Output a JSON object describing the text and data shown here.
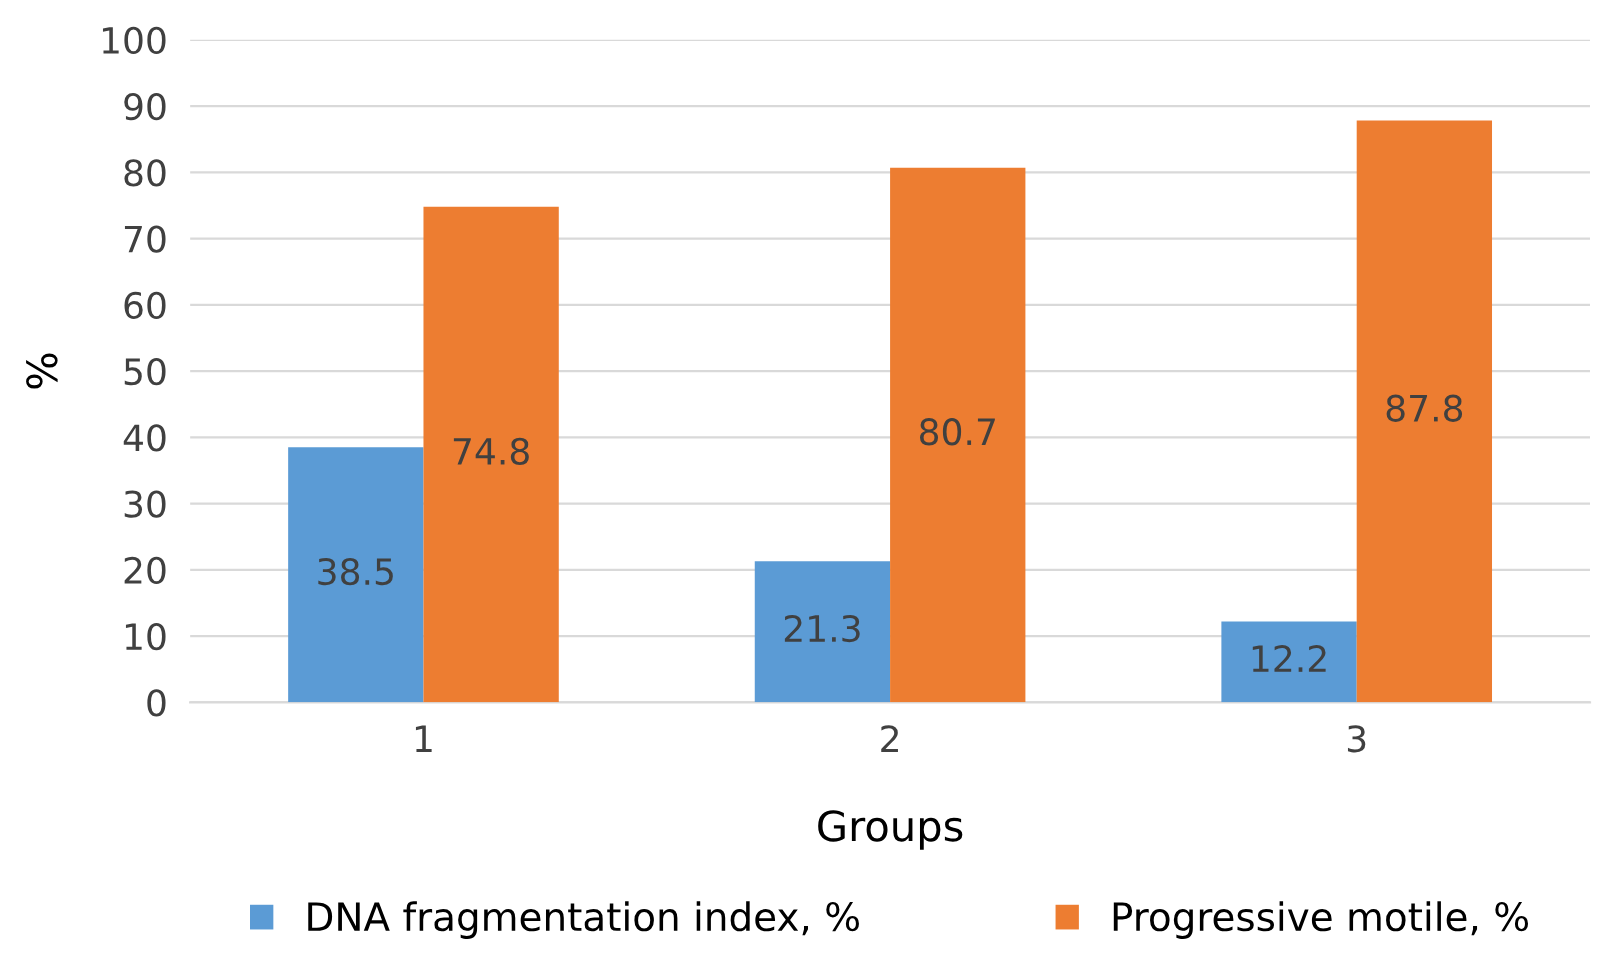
{
  "chart_data": {
    "type": "bar",
    "xlabel": "Groups",
    "ylabel": "%",
    "categories": [
      "1",
      "2",
      "3"
    ],
    "series": [
      {
        "name": "DNA fragmentation index, %",
        "color": "#5b9bd5",
        "values": [
          38.5,
          21.3,
          12.2
        ]
      },
      {
        "name": "Progressive motile, %",
        "color": "#ed7d31",
        "values": [
          74.8,
          80.7,
          87.8
        ]
      }
    ],
    "ylim": [
      0,
      100
    ],
    "yticks": [
      0,
      10,
      20,
      30,
      40,
      50,
      60,
      70,
      80,
      90,
      100
    ],
    "grid": "y",
    "legend": "bottom",
    "data_labels": true
  }
}
